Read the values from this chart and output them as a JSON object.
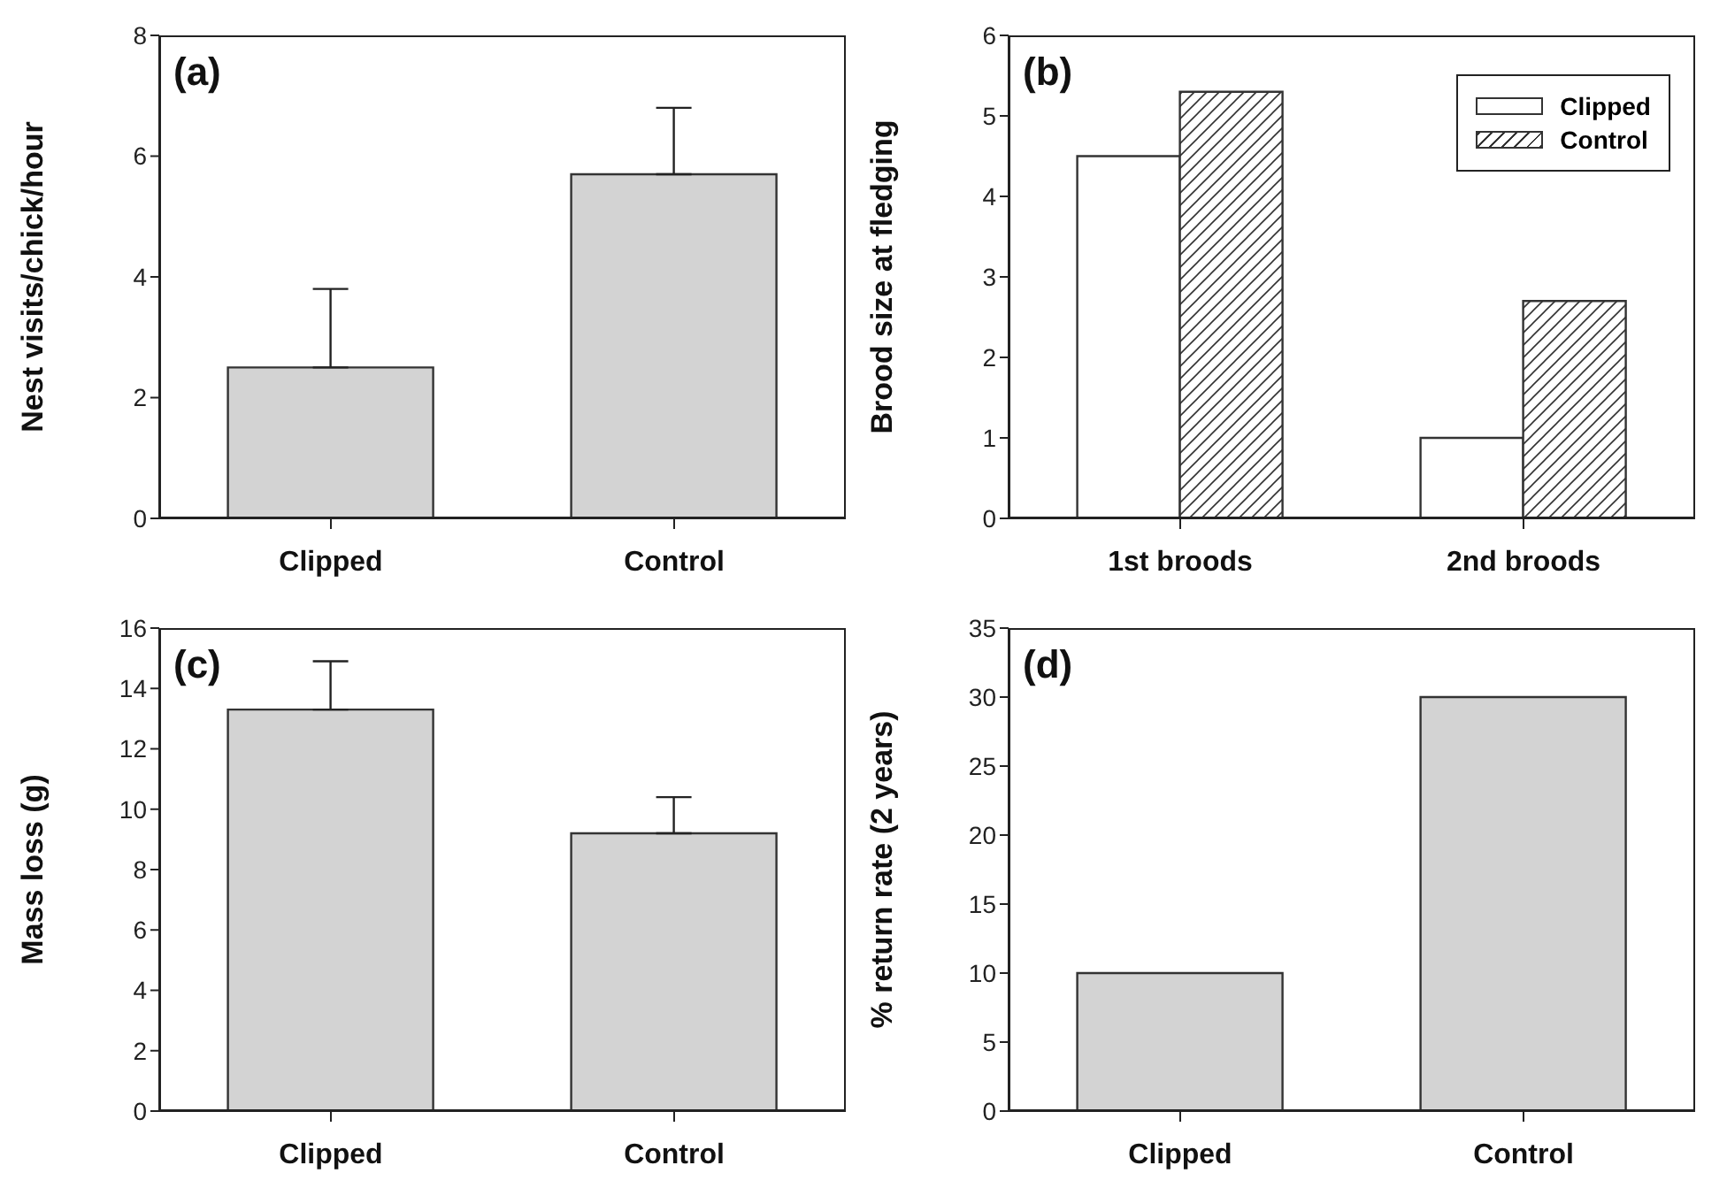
{
  "chart_data": [
    {
      "type": "bar",
      "annotations": [
        "(a)"
      ],
      "ylabel": "Nest visits/chick/hour",
      "categories": [
        "Clipped",
        "Control"
      ],
      "series": [
        {
          "color": "#d3d3d3",
          "values": [
            2.5,
            5.7
          ],
          "errors": [
            1.3,
            1.1
          ]
        }
      ],
      "ylim": [
        0,
        8
      ],
      "yticks": [
        0,
        2,
        4,
        6,
        8
      ]
    },
    {
      "type": "bar",
      "annotations": [
        "(b)"
      ],
      "ylabel": "Brood size at fledging",
      "categories": [
        "1st broods",
        "2nd broods"
      ],
      "series": [
        {
          "name": "Clipped",
          "color": "#ffffff",
          "values": [
            4.5,
            1.0
          ]
        },
        {
          "name": "Control",
          "color": "#333333",
          "values": [
            5.3,
            2.7
          ]
        }
      ],
      "ylim": [
        0,
        6
      ],
      "yticks": [
        0,
        1,
        2,
        3,
        4,
        5,
        6
      ],
      "legend": "top right"
    },
    {
      "type": "bar",
      "annotations": [
        "(c)"
      ],
      "ylabel": "Mass loss (g)",
      "categories": [
        "Clipped",
        "Control"
      ],
      "series": [
        {
          "color": "#d3d3d3",
          "values": [
            13.3,
            9.2
          ],
          "errors": [
            1.6,
            1.2
          ]
        }
      ],
      "ylim": [
        0,
        16
      ],
      "yticks": [
        0,
        2,
        4,
        6,
        8,
        10,
        12,
        14,
        16
      ]
    },
    {
      "type": "bar",
      "annotations": [
        "(d)"
      ],
      "ylabel": "% return rate (2 years)",
      "categories": [
        "Clipped",
        "Control"
      ],
      "series": [
        {
          "color": "#d3d3d3",
          "values": [
            10,
            30
          ]
        }
      ],
      "ylim": [
        0,
        35
      ],
      "yticks": [
        0,
        5,
        10,
        15,
        20,
        25,
        30,
        35
      ]
    }
  ]
}
